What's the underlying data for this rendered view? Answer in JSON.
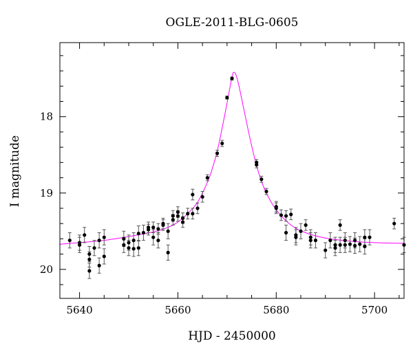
{
  "chart_data": {
    "type": "scatter",
    "title": "OGLE-2011-BLG-0605",
    "xlabel": "HJD - 2450000",
    "ylabel": "I magnitude",
    "xlim": [
      5636,
      5706
    ],
    "ylim": [
      20.38,
      17.03
    ],
    "y_inverted": true,
    "x_ticks": [
      5640,
      5660,
      5680,
      5700
    ],
    "y_ticks": [
      18,
      19,
      20
    ],
    "grid": false,
    "legend": "none",
    "colors": {
      "points": "#000000",
      "model": "#ff00ff",
      "axes": "#000000"
    },
    "model": {
      "name": "",
      "baseline_mag": 19.68,
      "peak_time": 5671.3,
      "peak_mag": 17.42,
      "x": [
        5636,
        5640,
        5645,
        5650,
        5655,
        5658,
        5660,
        5662,
        5664,
        5666,
        5667,
        5668,
        5669,
        5670,
        5670.5,
        5671,
        5671.3,
        5671.8,
        5672.5,
        5673.5,
        5675,
        5676.5,
        5678,
        5680,
        5683,
        5686,
        5690,
        5695,
        5700,
        5706
      ],
      "y": [
        19.67,
        19.65,
        19.62,
        19.57,
        19.51,
        19.45,
        19.38,
        19.27,
        19.12,
        18.86,
        18.68,
        18.45,
        18.15,
        17.82,
        17.65,
        17.48,
        17.42,
        17.45,
        17.62,
        17.93,
        18.38,
        18.75,
        19.0,
        19.22,
        19.42,
        19.52,
        19.59,
        19.63,
        19.65,
        19.66
      ]
    },
    "series": [
      {
        "x": [
          5638,
          5640,
          5640,
          5641,
          5642,
          5642,
          5642,
          5643,
          5644,
          5644,
          5645,
          5645,
          5649,
          5649,
          5650,
          5650,
          5651,
          5651,
          5652,
          5652,
          5653,
          5654,
          5654,
          5655,
          5655,
          5656,
          5656,
          5657,
          5657,
          5658,
          5658,
          5659,
          5659,
          5660,
          5660,
          5661,
          5661,
          5662,
          5663,
          5663,
          5664,
          5665,
          5666,
          5668,
          5669,
          5670,
          5671,
          5676,
          5676,
          5677,
          5678,
          5680,
          5680,
          5681,
          5682,
          5682,
          5683,
          5684,
          5684,
          5685,
          5686,
          5687,
          5687,
          5688,
          5690,
          5691,
          5692,
          5692,
          5693,
          5693,
          5694,
          5694,
          5695,
          5696,
          5696,
          5697,
          5698,
          5698,
          5699,
          5704,
          5706
        ],
        "y": [
          19.62,
          19.65,
          19.68,
          19.55,
          19.8,
          20.02,
          19.87,
          19.72,
          19.62,
          19.95,
          19.58,
          19.83,
          19.6,
          19.68,
          19.65,
          19.72,
          19.62,
          19.73,
          19.53,
          19.72,
          19.52,
          19.48,
          19.45,
          19.58,
          19.45,
          19.47,
          19.62,
          19.42,
          19.4,
          19.5,
          19.78,
          19.35,
          19.3,
          19.25,
          19.3,
          19.33,
          19.38,
          19.27,
          19.02,
          19.27,
          19.2,
          19.05,
          18.8,
          18.48,
          18.35,
          17.75,
          17.5,
          18.63,
          18.6,
          18.82,
          18.98,
          19.18,
          19.2,
          19.29,
          19.3,
          19.52,
          19.28,
          19.55,
          19.58,
          19.5,
          19.42,
          19.62,
          19.58,
          19.62,
          19.75,
          19.62,
          19.68,
          19.72,
          19.42,
          19.68,
          19.62,
          19.68,
          19.67,
          19.62,
          19.69,
          19.67,
          19.58,
          19.7,
          19.58,
          19.4,
          19.68
        ]
      }
    ]
  }
}
